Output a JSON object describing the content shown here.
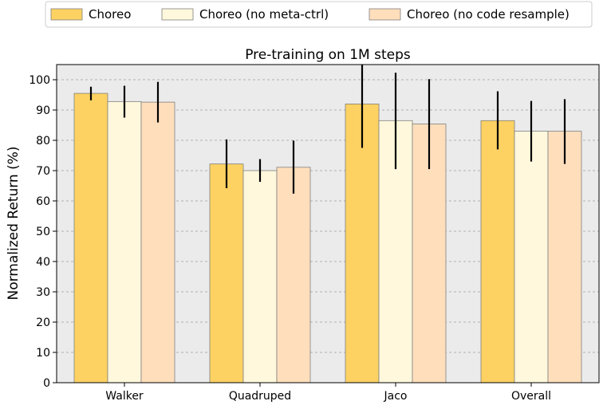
{
  "chart_data": {
    "type": "bar",
    "title": "Pre-training on 1M steps",
    "xlabel": "",
    "ylabel": "Normalized Return (%)",
    "ylim": [
      0,
      105
    ],
    "yticks": [
      0,
      10,
      20,
      30,
      40,
      50,
      60,
      70,
      80,
      90,
      100
    ],
    "grid": true,
    "legend_position": "top",
    "categories": [
      "Walker",
      "Quadruped",
      "Jaco",
      "Overall"
    ],
    "series": [
      {
        "name": "Choreo",
        "color": "#fdd262",
        "values": [
          95.5,
          72.2,
          92.0,
          86.5
        ],
        "error_low": [
          93.2,
          64.2,
          77.5,
          77.0
        ],
        "error_high": [
          97.7,
          80.3,
          105.0,
          96.2
        ]
      },
      {
        "name": "Choreo (no meta-ctrl)",
        "color": "#fff8dc",
        "values": [
          92.8,
          70.0,
          86.5,
          83.0
        ],
        "error_low": [
          87.5,
          66.3,
          70.5,
          73.0
        ],
        "error_high": [
          98.0,
          73.8,
          102.3,
          93.0
        ]
      },
      {
        "name": "Choreo (no code resample)",
        "color": "#ffdebc",
        "values": [
          92.6,
          71.1,
          85.4,
          83.0
        ],
        "error_low": [
          85.9,
          62.4,
          70.5,
          72.2
        ],
        "error_high": [
          99.3,
          79.9,
          100.2,
          93.6
        ]
      }
    ]
  },
  "colors": {
    "plot_background": "#ebebeb",
    "grid": "#b0b0b0",
    "error_bar": "#000000",
    "bar_edge": "#808080"
  }
}
